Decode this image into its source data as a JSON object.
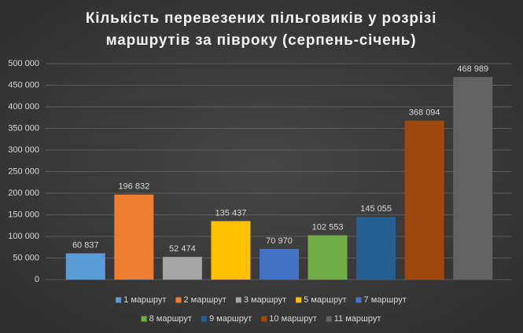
{
  "chart_data": {
    "type": "bar",
    "title": "Кількість перевезених пільговиків у розрізі маршрутів за півроку (серпень-січень)",
    "categories": [
      null
    ],
    "series": [
      {
        "name": "1 маршрут",
        "color": "#5b9bd5",
        "values": [
          60837
        ],
        "value_labels": [
          "60 837"
        ]
      },
      {
        "name": "2 маршрут",
        "color": "#ed7d31",
        "values": [
          196832
        ],
        "value_labels": [
          "196 832"
        ]
      },
      {
        "name": "3 маршрут",
        "color": "#a5a5a5",
        "values": [
          52474
        ],
        "value_labels": [
          "52 474"
        ]
      },
      {
        "name": "5 маршрут",
        "color": "#ffc000",
        "values": [
          135437
        ],
        "value_labels": [
          "135 437"
        ]
      },
      {
        "name": "7 маршрут",
        "color": "#4472c4",
        "values": [
          70970
        ],
        "value_labels": [
          "70 970"
        ]
      },
      {
        "name": "8 маршрут",
        "color": "#70ad47",
        "values": [
          102553
        ],
        "value_labels": [
          "102 553"
        ]
      },
      {
        "name": "9 маршрут",
        "color": "#255e91",
        "values": [
          145055
        ],
        "value_labels": [
          "145 055"
        ]
      },
      {
        "name": "10 маршрут",
        "color": "#9e480e",
        "values": [
          368094
        ],
        "value_labels": [
          "368 094"
        ]
      },
      {
        "name": "11 маршрут",
        "color": "#636363",
        "values": [
          468989
        ],
        "value_labels": [
          "468 989"
        ]
      }
    ],
    "ylim": [
      0,
      500000
    ],
    "yticks": [
      0,
      {
        "value": 50000,
        "label": "50 000"
      },
      {
        "value": 100000,
        "label": "100 000"
      },
      {
        "value": 150000,
        "label": "150 000"
      },
      {
        "value": 200000,
        "label": "200 000"
      },
      {
        "value": 250000,
        "label": "250 000"
      },
      {
        "value": 300000,
        "label": "300 000"
      },
      {
        "value": 350000,
        "label": "350 000"
      },
      {
        "value": 400000,
        "label": "400 000"
      },
      {
        "value": 450000,
        "label": "450 000"
      },
      {
        "value": 500000,
        "label": "500 000"
      }
    ],
    "grid": true,
    "legend": "bottom"
  }
}
